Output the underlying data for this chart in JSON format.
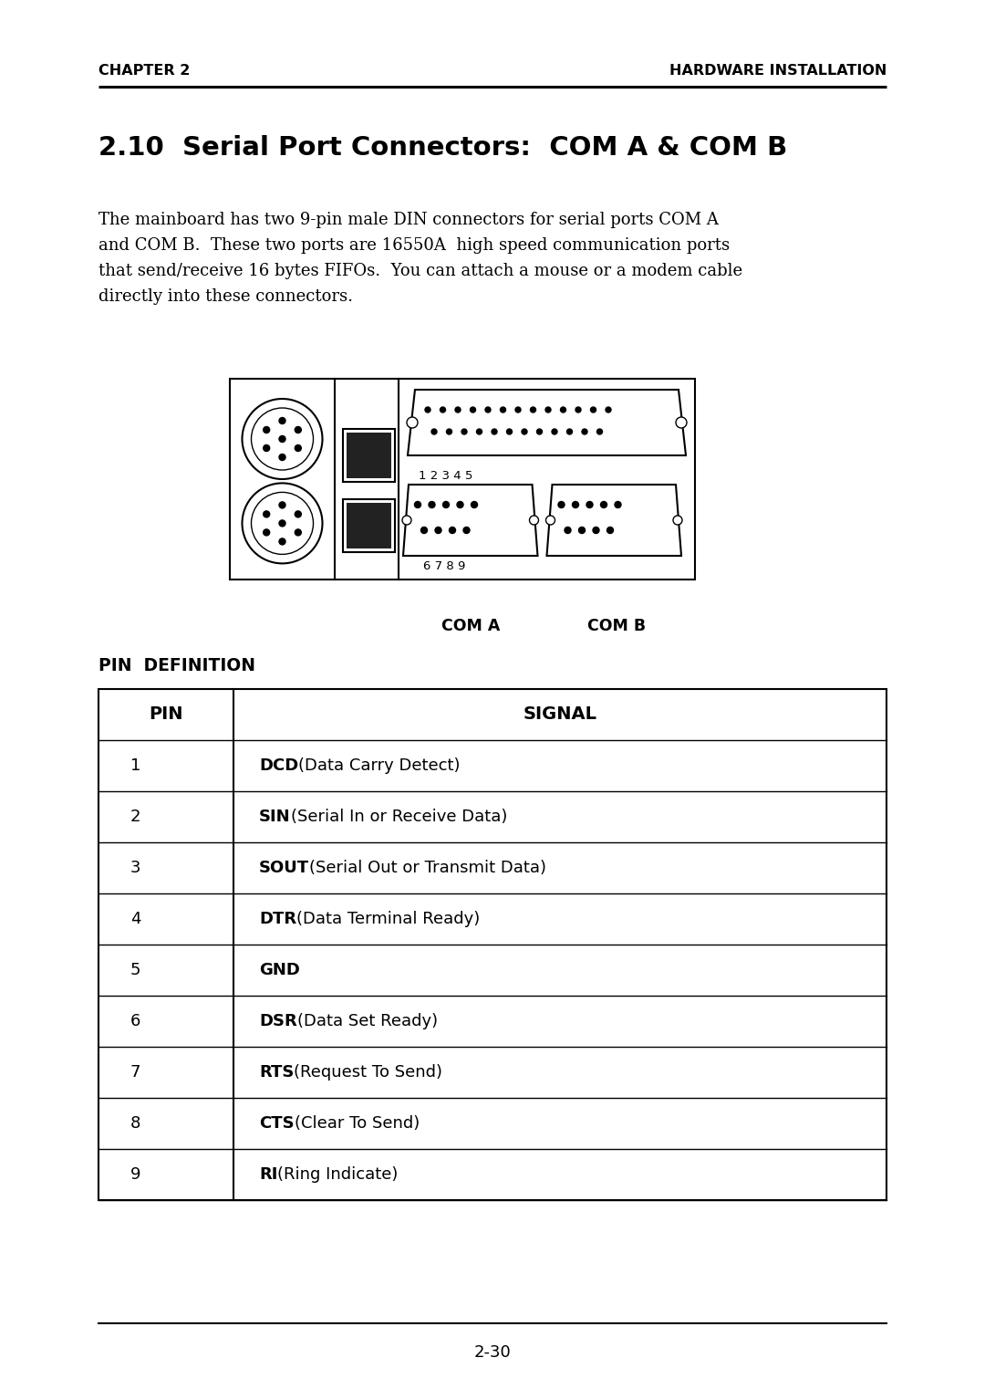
{
  "header_left": "CHAPTER 2",
  "header_right": "HARDWARE INSTALLATION",
  "section_title": "2.10  Serial Port Connectors:  COM A & COM B",
  "body_line1": "The mainboard has two 9-pin male DIN connectors for serial ports COM A",
  "body_line2": "and COM B.  These two ports are 16550A  high speed communication ports",
  "body_line3": "that send/receive 16 bytes FIFOs.  You can attach a mouse or a modem cable",
  "body_line4": "directly into these connectors.",
  "pin_def_title": "PIN  DEFINITION",
  "table_header_pin": "PIN",
  "table_header_signal": "SIGNAL",
  "signals": [
    {
      "pin": "1",
      "bold": "DCD",
      "normal": "(Data Carry Detect)"
    },
    {
      "pin": "2",
      "bold": "SIN",
      "normal": "(Serial In or Receive Data)"
    },
    {
      "pin": "3",
      "bold": "SOUT",
      "normal": "(Serial Out or Transmit Data)"
    },
    {
      "pin": "4",
      "bold": "DTR",
      "normal": "(Data Terminal Ready)"
    },
    {
      "pin": "5",
      "bold": "GND",
      "normal": ""
    },
    {
      "pin": "6",
      "bold": "DSR",
      "normal": "(Data Set Ready)"
    },
    {
      "pin": "7",
      "bold": "RTS",
      "normal": "(Request To Send)"
    },
    {
      "pin": "8",
      "bold": "CTS",
      "normal": "(Clear To Send)"
    },
    {
      "pin": "9",
      "bold": "RI",
      "normal": "(Ring Indicate)"
    }
  ],
  "footer_text": "2-30",
  "bg_color": "#ffffff",
  "text_color": "#000000",
  "com_a_label": "COM A",
  "com_b_label": "COM B",
  "label_12345": "1 2 3 4 5",
  "label_6789": "6 7 8 9"
}
